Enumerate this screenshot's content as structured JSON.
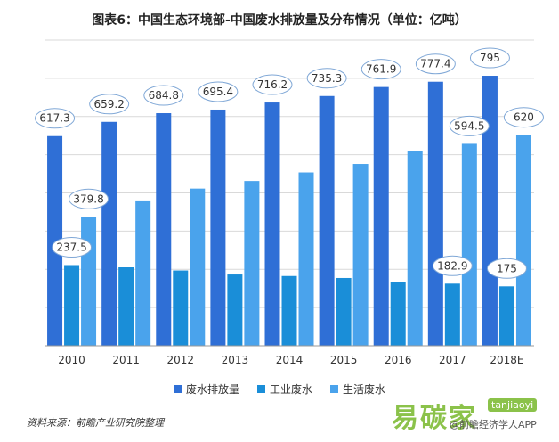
{
  "title": "图表6：中国生态环境部-中国废水排放量及分布情况（单位：亿吨）",
  "source": "资料来源：前瞻产业研究院整理",
  "logo": "易碳家",
  "logo_sub": "tanjiaoyi",
  "credit": "@前瞻经济学人APP",
  "colors": {
    "total": "#2f6fd6",
    "industrial": "#1a8ed8",
    "domestic": "#4aa3ec",
    "label_border": "#7fa7d6",
    "grid": "#d9d9d9"
  },
  "chart_data": {
    "type": "bar",
    "title": "图表6：中国生态环境部-中国废水排放量及分布情况（单位：亿吨）",
    "categories": [
      "2010",
      "2011",
      "2012",
      "2013",
      "2014",
      "2015",
      "2016",
      "2017",
      "2018E"
    ],
    "series": [
      {
        "name": "废水排放量",
        "values": [
          617.3,
          659.2,
          684.8,
          695.4,
          716.2,
          735.3,
          761.9,
          777.4,
          795
        ]
      },
      {
        "name": "工业废水",
        "values": [
          237.5,
          230.9,
          221.6,
          209.8,
          205.3,
          199.5,
          186.4,
          182.9,
          175
        ]
      },
      {
        "name": "生活废水",
        "values": [
          379.8,
          427.9,
          462.7,
          485.1,
          510.3,
          535.2,
          573.7,
          594.5,
          620
        ]
      }
    ],
    "labeled_points": [
      {
        "series": 0,
        "index": 0,
        "text": "617.3"
      },
      {
        "series": 0,
        "index": 1,
        "text": "659.2"
      },
      {
        "series": 0,
        "index": 2,
        "text": "684.8"
      },
      {
        "series": 0,
        "index": 3,
        "text": "695.4"
      },
      {
        "series": 0,
        "index": 4,
        "text": "716.2"
      },
      {
        "series": 0,
        "index": 5,
        "text": "735.3"
      },
      {
        "series": 0,
        "index": 6,
        "text": "761.9"
      },
      {
        "series": 0,
        "index": 7,
        "text": "777.4"
      },
      {
        "series": 0,
        "index": 8,
        "text": "795"
      },
      {
        "series": 1,
        "index": 0,
        "text": "237.5"
      },
      {
        "series": 1,
        "index": 7,
        "text": "182.9"
      },
      {
        "series": 1,
        "index": 8,
        "text": "175"
      },
      {
        "series": 2,
        "index": 0,
        "text": "379.8"
      },
      {
        "series": 2,
        "index": 7,
        "text": "594.5"
      },
      {
        "series": 2,
        "index": 8,
        "text": "620"
      }
    ],
    "ylim": [
      0,
      900
    ],
    "grid": true,
    "legend_position": "bottom"
  }
}
